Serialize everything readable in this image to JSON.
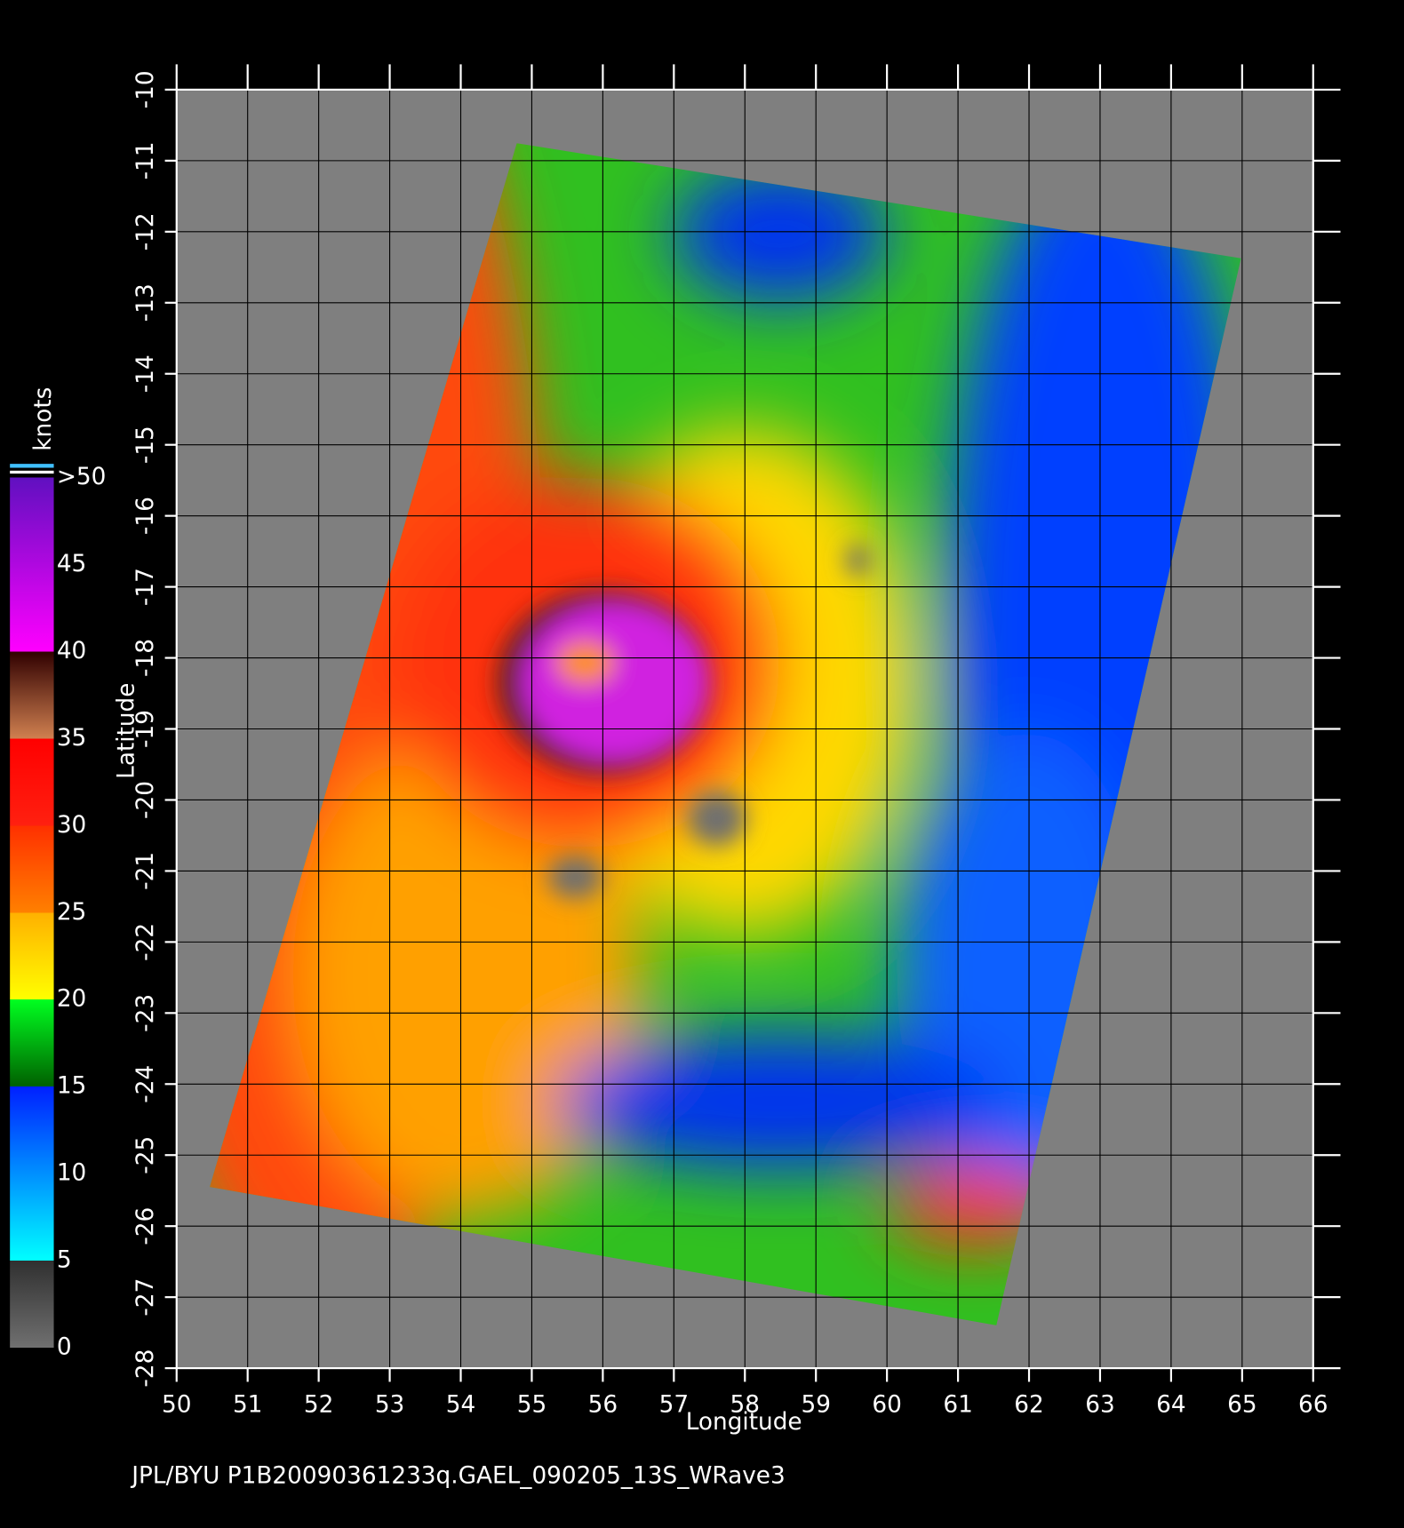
{
  "map": {
    "xlabel": "Longitude",
    "ylabel": "Latitude",
    "xlim": [
      50,
      66
    ],
    "ylim": [
      -10,
      -28
    ],
    "xticks": [
      50,
      51,
      52,
      53,
      54,
      55,
      56,
      57,
      58,
      59,
      60,
      61,
      62,
      63,
      64,
      65,
      66
    ],
    "yticks": [
      -10,
      -11,
      -12,
      -13,
      -14,
      -15,
      -16,
      -17,
      -18,
      -19,
      -20,
      -21,
      -22,
      -23,
      -24,
      -25,
      -26,
      -27,
      -28
    ],
    "colorbar": {
      "title": "knots",
      "lim": [
        0,
        50
      ],
      "ticks": [
        0,
        5,
        10,
        15,
        20,
        25,
        30,
        35,
        40,
        45,
        {
          "value": 50,
          "label": ">50"
        }
      ]
    }
  },
  "footer": "JPL/BYU  P1B20090361233q.GAEL_090205_13S_WRave3"
}
